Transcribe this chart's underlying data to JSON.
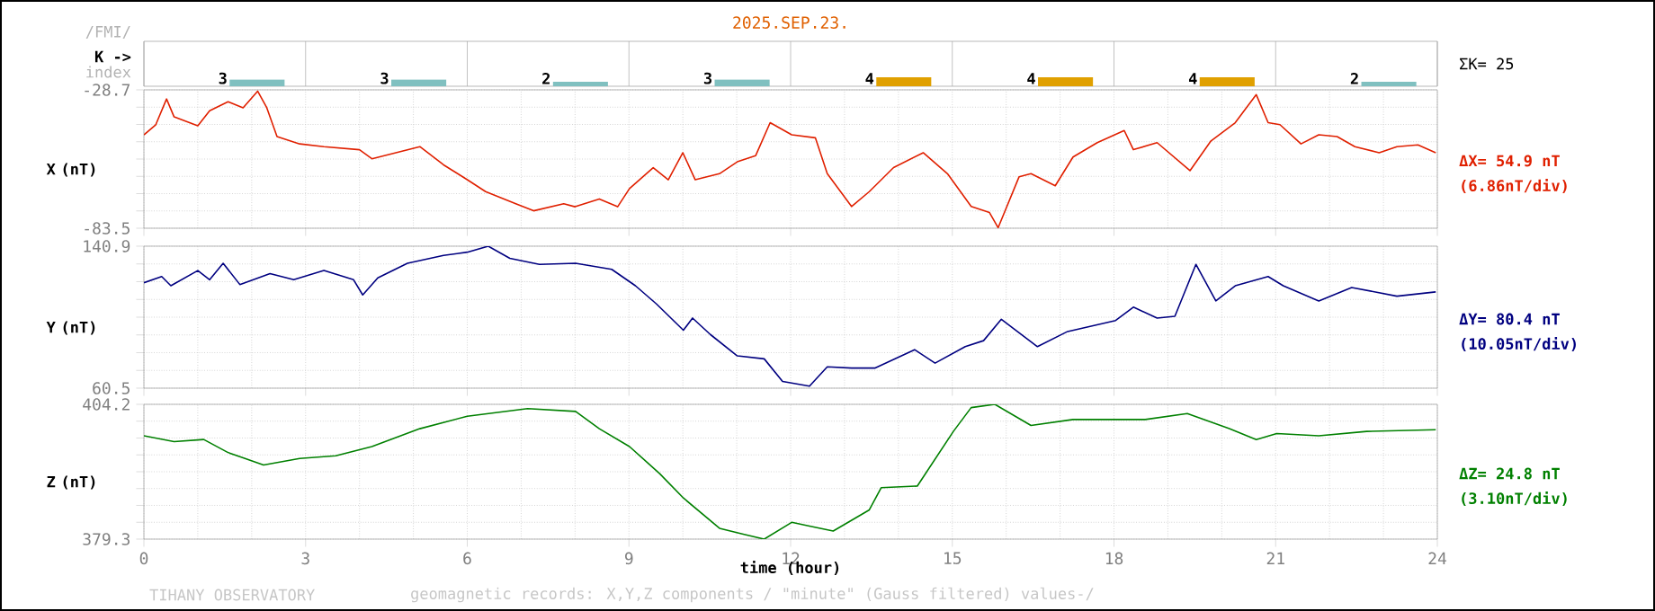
{
  "chart_data": [
    {
      "type": "bar",
      "title": "2025.SEP.23.",
      "ylabel": "K ->",
      "categories": [
        null,
        null,
        null,
        null,
        null,
        null,
        null,
        null
      ],
      "values": [
        3,
        3,
        2,
        3,
        4,
        4,
        4,
        2
      ],
      "colors": [
        "#80c0c0",
        "#80c0c0",
        "#80c0c0",
        "#80c0c0",
        "#e0a000",
        "#e0a000",
        "#e0a000",
        "#80c0c0"
      ],
      "data_labels": true,
      "annotations": [
        "/FMI/",
        "index",
        "ΣK= 25"
      ]
    },
    {
      "type": "line",
      "ylabel": "X (nT)",
      "xlim": [
        0,
        24
      ],
      "xticks": [
        0,
        3,
        6,
        9,
        12,
        15,
        18,
        21,
        24
      ],
      "ylim": [
        -83.5,
        -28.7
      ],
      "yticks": [
        -83.5,
        {
          "value": -76.65,
          "label": null
        },
        {
          "value": -69.8,
          "label": null
        },
        {
          "value": -62.95,
          "label": null
        },
        {
          "value": -56.1,
          "label": null
        },
        {
          "value": -49.25,
          "label": null
        },
        {
          "value": -42.4,
          "label": null
        },
        {
          "value": -35.55,
          "label": null
        },
        -28.7
      ],
      "grid": true,
      "tick_labels": "y",
      "annotations": [
        "ΔX= 54.9 nT",
        "(6.86nT/div)"
      ],
      "series": [
        {
          "color": "#e02000",
          "x": [
            0,
            0.22,
            0.42,
            0.56,
            1.0,
            1.22,
            1.56,
            1.84,
            2.11,
            2.28,
            2.47,
            2.89,
            3.34,
            4.0,
            4.23,
            5.12,
            5.56,
            6.0,
            6.34,
            6.9,
            7.23,
            7.79,
            8.0,
            8.45,
            8.79,
            9.01,
            9.45,
            9.73,
            10.0,
            10.23,
            10.68,
            11.01,
            11.35,
            11.62,
            12.02,
            12.46,
            12.68,
            13.13,
            13.46,
            13.91,
            14.46,
            14.91,
            15.35,
            15.69,
            15.85,
            16.24,
            16.46,
            16.91,
            17.24,
            17.69,
            18.19,
            18.36,
            18.8,
            19.41,
            19.8,
            20.25,
            20.64,
            20.86,
            21.08,
            21.47,
            21.8,
            22.14,
            22.47,
            22.92,
            23.25,
            23.64,
            23.97
          ],
          "values": [
            -46.5,
            -42.5,
            -32.3,
            -39.4,
            -42.9,
            -37.0,
            -33.4,
            -35.8,
            -29.2,
            -35.8,
            -47.2,
            -50.1,
            -51.2,
            -52.4,
            -56.0,
            -51.2,
            -58.4,
            -64.3,
            -69.0,
            -73.8,
            -76.6,
            -73.8,
            -75.0,
            -71.9,
            -75.0,
            -67.8,
            -59.5,
            -64.3,
            -53.6,
            -64.3,
            -61.9,
            -57.2,
            -54.8,
            -41.7,
            -46.5,
            -47.7,
            -61.9,
            -74.9,
            -69.0,
            -59.5,
            -53.6,
            -61.9,
            -74.9,
            -77.3,
            -83.3,
            -63.1,
            -61.9,
            -66.7,
            -55.3,
            -49.6,
            -44.8,
            -52.4,
            -49.6,
            -60.7,
            -48.9,
            -41.7,
            -30.6,
            -41.7,
            -42.5,
            -50.1,
            -46.5,
            -47.2,
            -51.2,
            -53.6,
            -51.2,
            -50.5,
            -53.6
          ]
        }
      ]
    },
    {
      "type": "line",
      "ylabel": "Y (nT)",
      "xlim": [
        0,
        24
      ],
      "xticks": [
        0,
        3,
        6,
        9,
        12,
        15,
        18,
        21,
        24
      ],
      "ylim": [
        60.5,
        140.9
      ],
      "yticks": [
        60.5,
        {
          "value": 70.55,
          "label": null
        },
        {
          "value": 80.6,
          "label": null
        },
        {
          "value": 90.65,
          "label": null
        },
        {
          "value": 100.7,
          "label": null
        },
        {
          "value": 110.75,
          "label": null
        },
        {
          "value": 120.8,
          "label": null
        },
        {
          "value": 130.85,
          "label": null
        },
        140.9
      ],
      "grid": true,
      "tick_labels": "y",
      "annotations": [
        "ΔY= 80.4 nT",
        "(10.05nT/div)"
      ],
      "series": [
        {
          "color": "#000080",
          "x": [
            0,
            0.33,
            0.5,
            1.0,
            1.22,
            1.47,
            1.78,
            2.34,
            2.78,
            3.34,
            3.89,
            4.06,
            4.34,
            4.89,
            5.56,
            6.0,
            6.39,
            6.79,
            7.34,
            8.01,
            8.68,
            9.12,
            9.51,
            10.01,
            10.18,
            10.51,
            11.01,
            11.51,
            11.85,
            12.35,
            12.68,
            13.13,
            13.57,
            14.3,
            14.68,
            15.24,
            15.58,
            15.91,
            16.58,
            17.14,
            18.03,
            18.36,
            18.8,
            19.13,
            19.52,
            19.89,
            20.25,
            20.86,
            21.14,
            21.8,
            22.41,
            23.25,
            23.97
          ],
          "values": [
            120.2,
            123.7,
            118.5,
            127.1,
            121.9,
            131.2,
            119.2,
            125.4,
            121.9,
            127.1,
            121.9,
            113.3,
            123.0,
            131.2,
            135.7,
            137.5,
            140.9,
            134.0,
            130.6,
            131.2,
            127.8,
            118.5,
            108.2,
            93.3,
            100.2,
            90.9,
            78.8,
            77.1,
            64.3,
            61.6,
            72.6,
            71.9,
            71.9,
            82.3,
            74.7,
            84.0,
            87.4,
            99.5,
            84.0,
            92.6,
            98.8,
            106.4,
            100.2,
            101.2,
            130.6,
            109.9,
            118.5,
            123.7,
            118.5,
            109.9,
            117.5,
            112.6,
            115.0
          ]
        }
      ]
    },
    {
      "type": "line",
      "ylabel": "Z (nT)",
      "xlabel": "time (hour)",
      "xlim": [
        0,
        24
      ],
      "xticks": [
        0,
        3,
        6,
        9,
        12,
        15,
        18,
        21,
        24
      ],
      "ylim": [
        379.3,
        404.2
      ],
      "yticks": [
        379.3,
        {
          "value": 382.41,
          "label": null
        },
        {
          "value": 385.53,
          "label": null
        },
        {
          "value": 388.64,
          "label": null
        },
        {
          "value": 391.75,
          "label": null
        },
        {
          "value": 394.86,
          "label": null
        },
        {
          "value": 397.98,
          "label": null
        },
        {
          "value": 401.09,
          "label": null
        },
        404.2
      ],
      "grid": true,
      "annotations": [
        "ΔZ= 24.8 nT",
        "(3.10nT/div)",
        "TIHANY OBSERVATORY",
        "geomagnetic records:  X,Y,Z  components   / \"minute\" (Gauss filtered) values-/"
      ],
      "series": [
        {
          "color": "#008000",
          "x": [
            0,
            0.56,
            1.11,
            1.56,
            2.22,
            2.89,
            3.56,
            4.23,
            5.12,
            6.0,
            7.12,
            8.01,
            8.45,
            9.01,
            9.57,
            10.01,
            10.68,
            11.12,
            11.51,
            12.02,
            12.35,
            12.79,
            13.46,
            13.68,
            14.35,
            15.02,
            15.35,
            15.79,
            16.46,
            17.24,
            18.58,
            19.36,
            20.14,
            20.64,
            21.02,
            21.8,
            22.69,
            23.97
          ],
          "values": [
            398.4,
            397.3,
            397.7,
            395.3,
            393.0,
            394.2,
            394.7,
            396.4,
            399.7,
            402.0,
            403.4,
            402.9,
            399.7,
            396.4,
            391.4,
            386.9,
            381.3,
            380.2,
            379.3,
            382.4,
            381.7,
            380.8,
            384.7,
            388.8,
            389.1,
            399.2,
            403.6,
            404.2,
            400.3,
            401.4,
            401.4,
            402.5,
            399.7,
            397.7,
            398.8,
            398.4,
            399.2,
            399.5
          ]
        }
      ]
    }
  ]
}
